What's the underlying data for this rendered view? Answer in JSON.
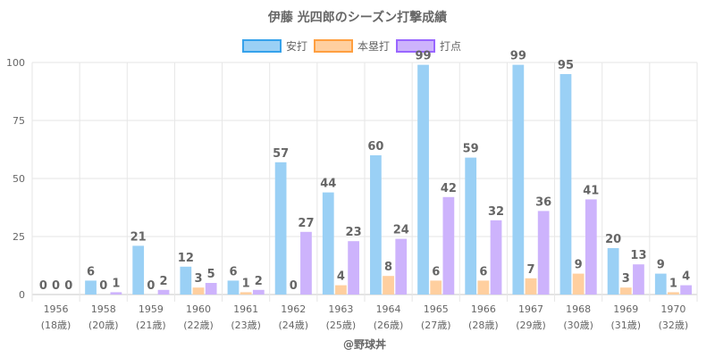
{
  "chart_data": {
    "type": "bar",
    "title": "伊藤 光四郎のシーズン打撃成績",
    "xlabel": "",
    "ylabel": "",
    "ylim": [
      0,
      100
    ],
    "yticks": [
      0,
      25,
      50,
      75,
      100
    ],
    "grid": true,
    "legend_position": "top",
    "categories": [
      "1956",
      "1958",
      "1959",
      "1960",
      "1961",
      "1962",
      "1963",
      "1964",
      "1965",
      "1966",
      "1967",
      "1968",
      "1969",
      "1970"
    ],
    "category_sublabels": [
      "(18歳)",
      "(20歳)",
      "(21歳)",
      "(22歳)",
      "(23歳)",
      "(24歳)",
      "(25歳)",
      "(26歳)",
      "(27歳)",
      "(28歳)",
      "(29歳)",
      "(30歳)",
      "(31歳)",
      "(32歳)"
    ],
    "series": [
      {
        "name": "安打",
        "fill": "#9ad0f5",
        "border": "#36a2eb",
        "values": [
          0,
          6,
          21,
          12,
          6,
          57,
          44,
          60,
          99,
          59,
          99,
          95,
          20,
          9
        ]
      },
      {
        "name": "本塁打",
        "fill": "#ffcf9f",
        "border": "#ff9f40",
        "values": [
          0,
          0,
          0,
          3,
          1,
          0,
          4,
          8,
          6,
          6,
          7,
          9,
          3,
          1
        ]
      },
      {
        "name": "打点",
        "fill": "#cdb3fc",
        "border": "#9966ff",
        "values": [
          0,
          1,
          2,
          5,
          2,
          27,
          23,
          24,
          42,
          32,
          36,
          41,
          13,
          4
        ]
      }
    ],
    "credit": "@野球丼"
  }
}
